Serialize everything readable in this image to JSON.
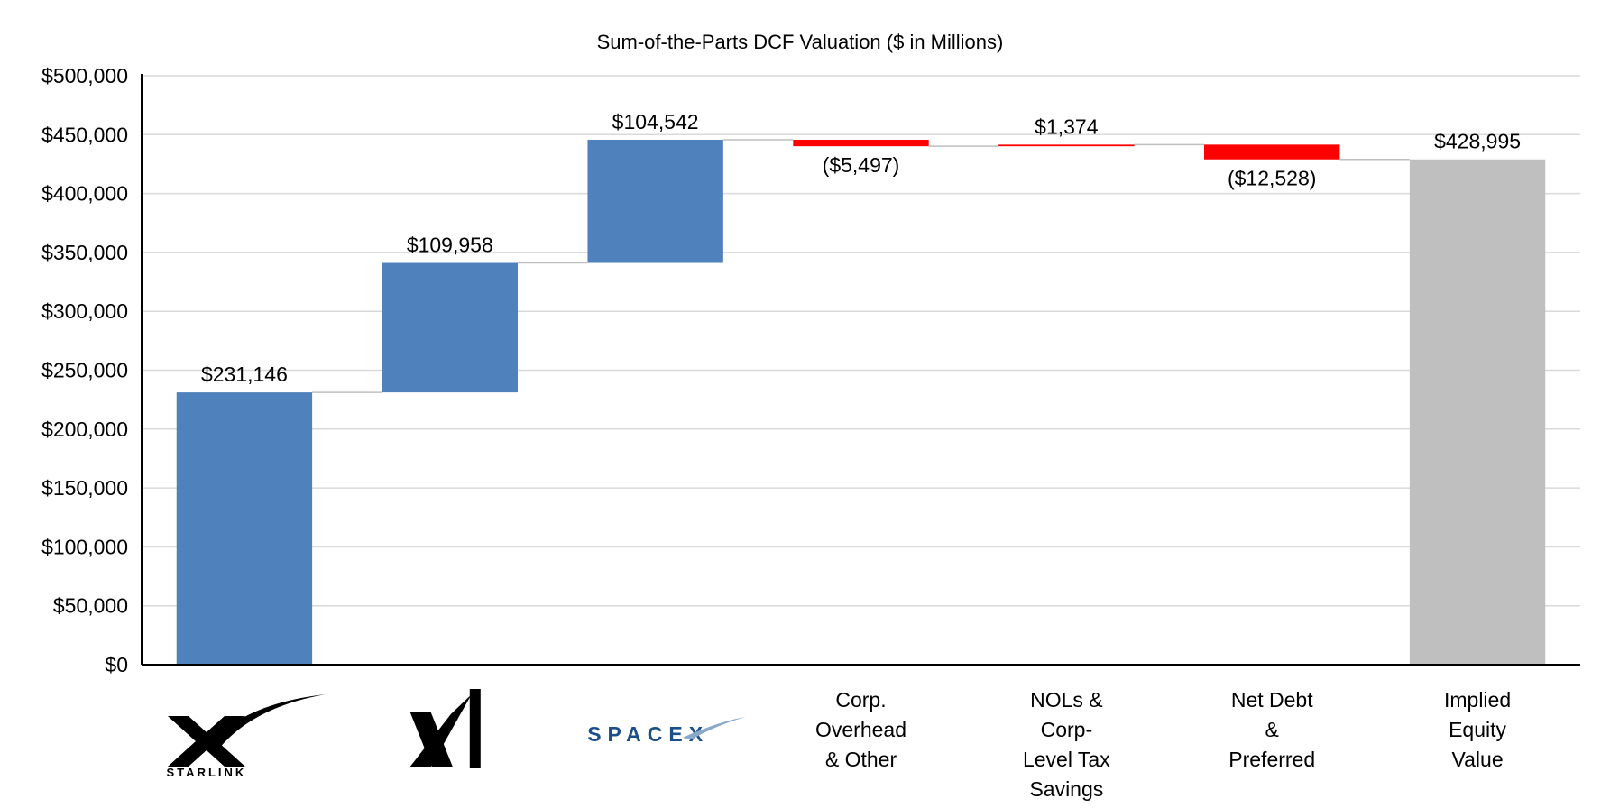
{
  "chart_data": {
    "type": "bar",
    "subtype": "waterfall",
    "title": "Sum-of-the-Parts DCF Valuation ($ in Millions)",
    "xlabel": "",
    "ylabel": "",
    "ylim": [
      0,
      500000
    ],
    "ytick_step": 50000,
    "yticks": [
      "$0",
      "$50,000",
      "$100,000",
      "$150,000",
      "$200,000",
      "$250,000",
      "$300,000",
      "$350,000",
      "$400,000",
      "$450,000",
      "$500,000"
    ],
    "grid": true,
    "legend": "none",
    "colors": {
      "positive": "#4f81bd",
      "negative": "#ff0000",
      "total": "#bfbfbf",
      "connector": "#bfbfbf",
      "grid": "#d9d9d9",
      "axis": "#000000"
    },
    "categories": [
      {
        "kind": "logo",
        "logo": "starlink",
        "logo_text": "STARLINK",
        "value": 231146,
        "type": "increase",
        "data_label": "$231,146"
      },
      {
        "kind": "logo",
        "logo": "xai",
        "logo_text": "",
        "value": 109958,
        "type": "increase",
        "data_label": "$109,958"
      },
      {
        "kind": "logo",
        "logo": "spacex",
        "logo_text": "SPACEX",
        "value": 104542,
        "type": "increase",
        "data_label": "$104,542"
      },
      {
        "kind": "text",
        "label_lines": [
          "Corp.",
          "Overhead",
          "& Other"
        ],
        "value": -5497,
        "type": "decrease",
        "data_label": "($5,497)"
      },
      {
        "kind": "text",
        "label_lines": [
          "NOLs &",
          "Corp-",
          "Level Tax",
          "Savings"
        ],
        "value": 1374,
        "type": "increase_small",
        "data_label": "$1,374"
      },
      {
        "kind": "text",
        "label_lines": [
          "Net Debt",
          "&",
          "Preferred"
        ],
        "value": -12528,
        "type": "decrease",
        "data_label": "($12,528)"
      },
      {
        "kind": "text",
        "label_lines": [
          "Implied",
          "Equity",
          "Value"
        ],
        "value": 428995,
        "type": "total",
        "data_label": "$428,995"
      }
    ]
  }
}
